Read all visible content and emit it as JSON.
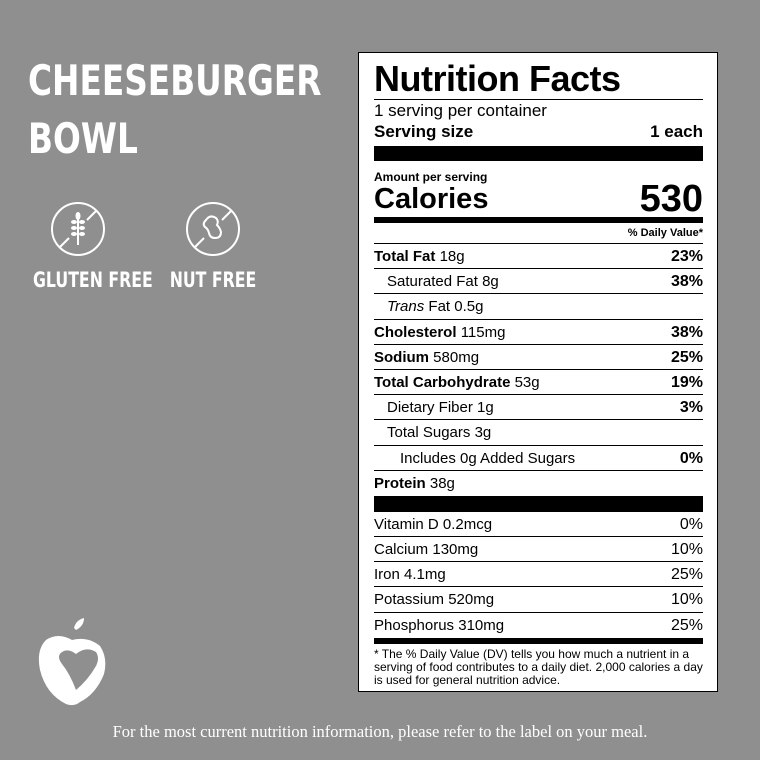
{
  "product": {
    "title_line1": "CHEESEBURGER",
    "title_line2": "BOWL"
  },
  "badges": [
    {
      "label": "GLUTEN FREE",
      "icon": "no-wheat-icon"
    },
    {
      "label": "NUT FREE",
      "icon": "no-peanut-icon"
    }
  ],
  "footer": "For the most current nutrition information, please refer to the label on your meal.",
  "colors": {
    "background": "#8f8f8f",
    "label": "#ffffff",
    "text": "#000000"
  },
  "label": {
    "title": "Nutrition Facts",
    "servings": "1 serving per container",
    "serving_size_label": "Serving size",
    "serving_size_value": "1 each",
    "amount_per_serving": "Amount per serving",
    "calories_label": "Calories",
    "calories_value": "530",
    "dv_header": "% Daily Value*",
    "nutrients": [
      {
        "name": "Total Fat",
        "amount": "18g",
        "dv": "23%"
      },
      {
        "name": "Saturated Fat",
        "amount": "8g",
        "dv": "38%"
      },
      {
        "name": "Trans",
        "name_rest": "Fat",
        "amount": "0.5g",
        "dv": ""
      },
      {
        "name": "Cholesterol",
        "amount": "115mg",
        "dv": "38%"
      },
      {
        "name": "Sodium",
        "amount": "580mg",
        "dv": "25%"
      },
      {
        "name": "Total Carbohydrate",
        "amount": "53g",
        "dv": "19%"
      },
      {
        "name": "Dietary Fiber",
        "amount": "1g",
        "dv": "3%"
      },
      {
        "name": "Total Sugars",
        "amount": "3g",
        "dv": ""
      },
      {
        "name": "Includes 0g Added Sugars",
        "amount": "",
        "dv": "0%"
      },
      {
        "name": "Protein",
        "amount": "38g",
        "dv": ""
      }
    ],
    "vitamins": [
      {
        "name": "Vitamin D",
        "amount": "0.2mcg",
        "dv": "0%"
      },
      {
        "name": "Calcium",
        "amount": "130mg",
        "dv": "10%"
      },
      {
        "name": "Iron",
        "amount": "4.1mg",
        "dv": "25%"
      },
      {
        "name": "Potassium",
        "amount": "520mg",
        "dv": "10%"
      },
      {
        "name": "Phosphorus",
        "amount": "310mg",
        "dv": "25%"
      }
    ],
    "footnote": "* The % Daily Value (DV) tells you how much a nutrient in a serving of food contributes to a daily diet. 2,000 calories a day is used for general nutrition advice."
  }
}
